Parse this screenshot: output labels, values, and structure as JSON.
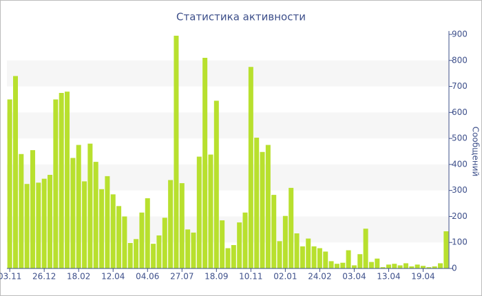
{
  "chart_data": {
    "type": "bar",
    "title": "Статистика активности",
    "y_label": "Сообщений",
    "color": "#b8e02e",
    "y_axis_side": "right",
    "bands": true,
    "categories": [
      "03.11",
      null,
      null,
      null,
      null,
      null,
      "26.12",
      null,
      null,
      null,
      null,
      null,
      "18.02",
      null,
      null,
      null,
      null,
      null,
      "12.04",
      null,
      null,
      null,
      null,
      null,
      "04.06",
      null,
      null,
      null,
      null,
      null,
      "27.07",
      null,
      null,
      null,
      null,
      null,
      "18.09",
      null,
      null,
      null,
      null,
      null,
      "10.11",
      null,
      null,
      null,
      null,
      null,
      "02.01",
      null,
      null,
      null,
      null,
      null,
      "24.02",
      null,
      null,
      null,
      null,
      null,
      "03.04",
      null,
      null,
      null,
      null,
      null,
      "13.04",
      null,
      null,
      null,
      null,
      null,
      "19.04",
      null,
      null,
      null,
      null
    ],
    "values": [
      650,
      740,
      440,
      325,
      455,
      330,
      345,
      360,
      650,
      675,
      680,
      425,
      475,
      335,
      480,
      410,
      305,
      355,
      285,
      240,
      200,
      98,
      113,
      215,
      270,
      95,
      127,
      195,
      340,
      895,
      328,
      150,
      138,
      430,
      810,
      438,
      645,
      185,
      78,
      90,
      177,
      215,
      775,
      503,
      448,
      475,
      283,
      105,
      202,
      310,
      135,
      85,
      115,
      85,
      78,
      65,
      28,
      18,
      22,
      70,
      12,
      55,
      153,
      25,
      38,
      5,
      15,
      18,
      12,
      20,
      8,
      15,
      10,
      5,
      8,
      20,
      143
    ],
    "ylim": [
      0,
      900
    ],
    "yticks": [
      0,
      100,
      200,
      300,
      400,
      500,
      600,
      700,
      800,
      900
    ]
  }
}
